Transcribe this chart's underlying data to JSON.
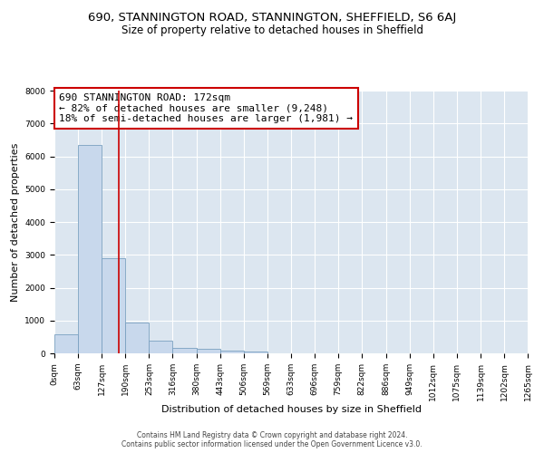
{
  "title": "690, STANNINGTON ROAD, STANNINGTON, SHEFFIELD, S6 6AJ",
  "subtitle": "Size of property relative to detached houses in Sheffield",
  "xlabel": "Distribution of detached houses by size in Sheffield",
  "ylabel": "Number of detached properties",
  "bin_edges": [
    0,
    63,
    127,
    190,
    253,
    316,
    380,
    443,
    506,
    569,
    633,
    696,
    759,
    822,
    886,
    949,
    1012,
    1075,
    1139,
    1202,
    1265
  ],
  "bar_heights": [
    570,
    6350,
    2900,
    950,
    380,
    175,
    125,
    75,
    50,
    0,
    0,
    0,
    0,
    0,
    0,
    0,
    0,
    0,
    0,
    0
  ],
  "bar_color": "#c8d8ec",
  "bar_edge_color": "#7aa0c0",
  "property_size": 172,
  "vline_color": "#cc0000",
  "annotation_text": "690 STANNINGTON ROAD: 172sqm\n← 82% of detached houses are smaller (9,248)\n18% of semi-detached houses are larger (1,981) →",
  "annotation_box_color": "#cc0000",
  "ylim": [
    0,
    8000
  ],
  "yticks": [
    0,
    1000,
    2000,
    3000,
    4000,
    5000,
    6000,
    7000,
    8000
  ],
  "grid_color": "#ffffff",
  "background_color": "#dce6f0",
  "footer_line1": "Contains HM Land Registry data © Crown copyright and database right 2024.",
  "footer_line2": "Contains public sector information licensed under the Open Government Licence v3.0.",
  "title_fontsize": 9.5,
  "subtitle_fontsize": 8.5,
  "tick_label_fontsize": 6.5,
  "axis_label_fontsize": 8,
  "annotation_fontsize": 8
}
